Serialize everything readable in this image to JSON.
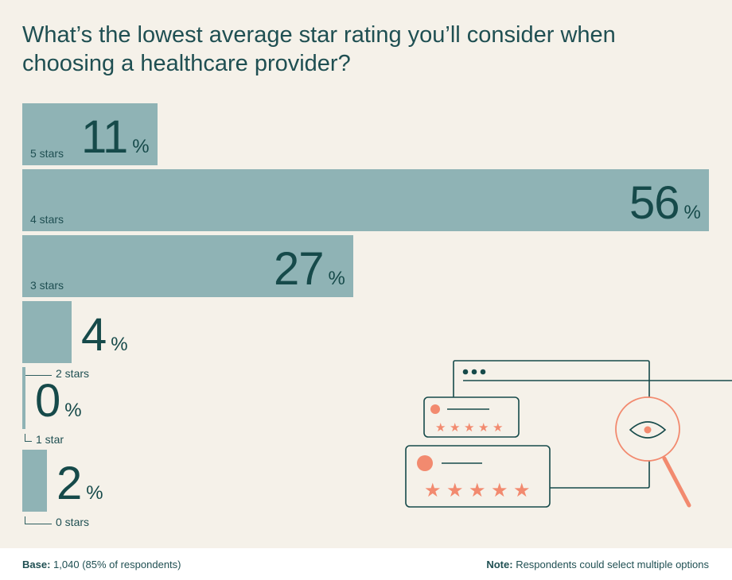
{
  "chart_data": {
    "type": "bar",
    "orientation": "horizontal",
    "title": "What’s the lowest average star rating you’ll consider when choosing a healthcare provider?",
    "categories": [
      "5 stars",
      "4 stars",
      "3 stars",
      "2 stars",
      "1 star",
      "0 stars"
    ],
    "values": [
      11,
      56,
      27,
      4,
      0,
      2
    ],
    "unit": "%",
    "xlim": [
      0,
      56
    ]
  },
  "footer": {
    "base_label": "Base:",
    "base_text": "1,040 (85% of respondents)",
    "note_label": "Note:",
    "note_text": "Respondents could select multiple options"
  },
  "colors": {
    "bar": "#8fb3b5",
    "accent": "#f28a6f",
    "text": "#164a4a",
    "background": "#f5f1e9"
  },
  "illustration": {
    "icons": [
      "browser-window-icon",
      "review-card-icon",
      "magnifying-glass-icon",
      "eye-icon",
      "star-icon"
    ]
  }
}
